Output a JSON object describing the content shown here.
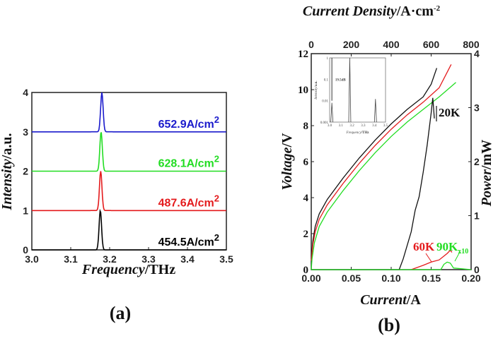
{
  "chart_data": [
    {
      "id": "a",
      "type": "line",
      "panel_label": "(a)",
      "title": "",
      "xlabel_italic": "Frequency",
      "xlabel_unit": "/THz",
      "ylabel_italic": "Intensity",
      "ylabel_unit": "/a.u.",
      "xlim": [
        3.0,
        3.5
      ],
      "ylim": [
        0,
        4
      ],
      "xticks": [
        3.0,
        3.1,
        3.2,
        3.3,
        3.4,
        3.5
      ],
      "xtick_labels": [
        "3.0",
        "3.1",
        "3.2",
        "3.3",
        "3.4",
        "3.5"
      ],
      "yticks": [
        0,
        1,
        2,
        3,
        4
      ],
      "ytick_labels": [
        "0",
        "1",
        "2",
        "3",
        "4"
      ],
      "series": [
        {
          "name": "454.5A/cm2",
          "label": "454.5A/cm",
          "sup": "2",
          "color": "#000000",
          "offset": 0,
          "peak_freq": 3.176,
          "peak_height": 1.0
        },
        {
          "name": "487.6A/cm2",
          "label": "487.6A/cm",
          "sup": "2",
          "color": "#e41a1c",
          "offset": 1,
          "peak_freq": 3.177,
          "peak_height": 1.0
        },
        {
          "name": "628.1A/cm2",
          "label": "628.1A/cm",
          "sup": "2",
          "color": "#22dd22",
          "offset": 2,
          "peak_freq": 3.178,
          "peak_height": 1.0
        },
        {
          "name": "652.9A/cm2",
          "label": "652.9A/cm",
          "sup": "2",
          "color": "#1a1acc",
          "offset": 3,
          "peak_freq": 3.18,
          "peak_height": 1.0
        }
      ]
    },
    {
      "id": "b",
      "type": "line",
      "panel_label": "(b)",
      "xlabel_italic": "Current",
      "xlabel_unit": "/A",
      "ylabel_italic": "Voltage",
      "ylabel_unit": "/V",
      "y2label_italic": "Power",
      "y2label_unit": "/mW",
      "x2label_italic": "Current Density",
      "x2label_unit": "/A·cm",
      "x2label_sup": "-2",
      "xlim": [
        0,
        0.2
      ],
      "ylim": [
        0,
        12
      ],
      "y2lim": [
        0,
        4
      ],
      "x2lim": [
        0,
        800
      ],
      "xticks": [
        0,
        0.05,
        0.1,
        0.15,
        0.2
      ],
      "xtick_labels": [
        "0.00",
        "0.05",
        "0.10",
        "0.15",
        "0.20"
      ],
      "yticks": [
        0,
        2,
        4,
        6,
        8,
        10,
        12
      ],
      "ytick_labels": [
        "0",
        "2",
        "4",
        "6",
        "8",
        "10",
        "12"
      ],
      "y2ticks": [
        0,
        1,
        2,
        3,
        4
      ],
      "y2tick_labels": [
        "0",
        "1",
        "2",
        "3",
        "4"
      ],
      "x2ticks": [
        0,
        200,
        400,
        600,
        800
      ],
      "x2tick_labels": [
        "0",
        "200",
        "400",
        "600",
        "800"
      ],
      "voltage_series": [
        {
          "name": "20K voltage",
          "color": "#111111",
          "points": [
            [
              0,
              0.6
            ],
            [
              0.002,
              1.6
            ],
            [
              0.005,
              2.4
            ],
            [
              0.01,
              3.1
            ],
            [
              0.02,
              3.9
            ],
            [
              0.04,
              5.1
            ],
            [
              0.06,
              6.2
            ],
            [
              0.08,
              7.2
            ],
            [
              0.1,
              8.1
            ],
            [
              0.12,
              8.9
            ],
            [
              0.14,
              9.6
            ],
            [
              0.15,
              10.3
            ],
            [
              0.157,
              11.2
            ]
          ]
        },
        {
          "name": "60K voltage",
          "color": "#e41a1c",
          "points": [
            [
              0,
              0.5
            ],
            [
              0.002,
              1.4
            ],
            [
              0.005,
              2.1
            ],
            [
              0.01,
              2.8
            ],
            [
              0.02,
              3.6
            ],
            [
              0.04,
              4.8
            ],
            [
              0.06,
              5.9
            ],
            [
              0.08,
              6.9
            ],
            [
              0.1,
              7.8
            ],
            [
              0.12,
              8.6
            ],
            [
              0.14,
              9.3
            ],
            [
              0.16,
              10.1
            ],
            [
              0.175,
              11.4
            ]
          ]
        },
        {
          "name": "90K voltage",
          "color": "#22dd22",
          "points": [
            [
              0,
              0
            ],
            [
              0.001,
              0.6
            ],
            [
              0.004,
              1.5
            ],
            [
              0.01,
              2.4
            ],
            [
              0.02,
              3.2
            ],
            [
              0.04,
              4.4
            ],
            [
              0.06,
              5.5
            ],
            [
              0.08,
              6.5
            ],
            [
              0.1,
              7.4
            ],
            [
              0.12,
              8.2
            ],
            [
              0.14,
              8.9
            ],
            [
              0.16,
              9.6
            ],
            [
              0.181,
              10.4
            ]
          ]
        }
      ],
      "power_series": [
        {
          "name": "20K",
          "color": "#111111",
          "axis": "right",
          "points": [
            [
              0,
              0
            ],
            [
              0.11,
              0
            ],
            [
              0.115,
              0.2
            ],
            [
              0.125,
              0.7
            ],
            [
              0.13,
              1.1
            ],
            [
              0.135,
              1.35
            ],
            [
              0.14,
              1.8
            ],
            [
              0.145,
              2.3
            ],
            [
              0.15,
              2.9
            ],
            [
              0.152,
              3.18
            ],
            [
              0.153,
              3.0
            ],
            [
              0.154,
              2.8
            ]
          ]
        },
        {
          "name": "60K",
          "color": "#e41a1c",
          "axis": "right",
          "points": [
            [
              0.125,
              0
            ],
            [
              0.14,
              0.08
            ],
            [
              0.15,
              0.14
            ],
            [
              0.16,
              0.18
            ],
            [
              0.17,
              0.3
            ],
            [
              0.174,
              0.36
            ],
            [
              0.176,
              0.32
            ]
          ]
        },
        {
          "name": "90K x10",
          "color": "#22dd22",
          "axis": "right",
          "scale": 10,
          "points": [
            [
              0,
              0
            ],
            [
              0.162,
              0
            ],
            [
              0.166,
              0.1
            ],
            [
              0.17,
              0.14
            ],
            [
              0.174,
              0.12
            ],
            [
              0.178,
              0.03
            ],
            [
              0.2,
              0
            ]
          ]
        }
      ],
      "annotations": [
        {
          "text": "20K",
          "color": "#111111"
        },
        {
          "text": "60K",
          "color": "#e41a1c"
        },
        {
          "text": "90K",
          "sub": "x10",
          "color": "#22dd22"
        }
      ],
      "inset": {
        "xlabel_italic": "Frequency",
        "xlabel_unit": "/THz",
        "ylabel_italic": "Intensity",
        "ylabel_unit": "/a.u.",
        "yscale": "log",
        "xlim": [
          3.0,
          3.5
        ],
        "ylim": [
          0.001,
          1
        ],
        "xtick_labels": [
          "3.0",
          "3.1",
          "3.2",
          "3.3",
          "3.4",
          "3.5"
        ],
        "ytick_labels": [
          "0.001",
          "0.01",
          "0.1",
          "1"
        ],
        "annotation": "19.5dB",
        "peaks": [
          [
            3.02,
            0.008
          ],
          [
            3.18,
            1.0
          ],
          [
            3.41,
            0.012
          ]
        ]
      }
    }
  ]
}
